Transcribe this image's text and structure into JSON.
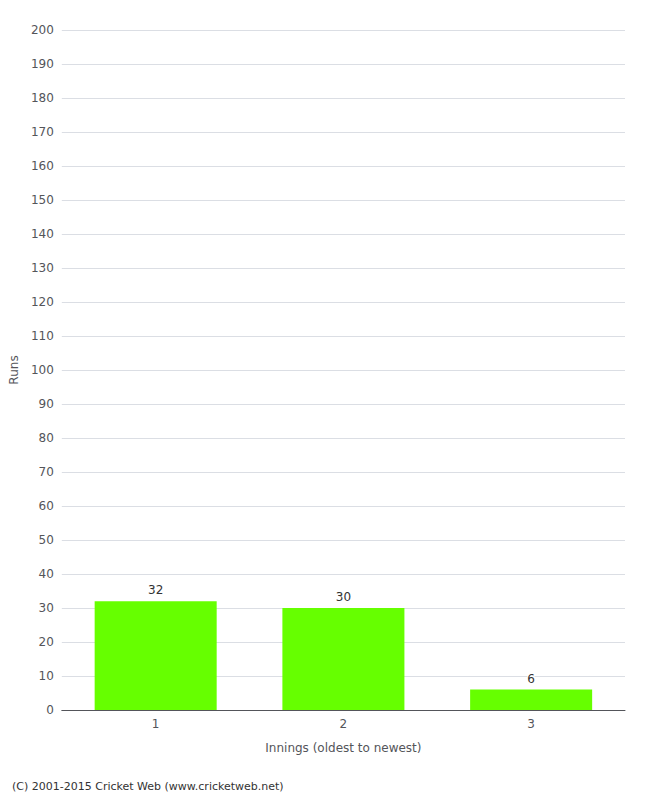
{
  "chart_data": {
    "type": "bar",
    "categories": [
      "1",
      "2",
      "3"
    ],
    "values": [
      32,
      30,
      6
    ],
    "color": "#66ff00",
    "ylabel": "Runs",
    "xlabel": "Innings (oldest to newest)",
    "ylim": [
      0,
      200
    ],
    "yticks": [
      0,
      10,
      20,
      30,
      40,
      50,
      60,
      70,
      80,
      90,
      100,
      110,
      120,
      130,
      140,
      150,
      160,
      170,
      180,
      190,
      200
    ],
    "grid": true,
    "data_labels": true,
    "annotations": [
      "(C) 2001-2015 Cricket Web (www.cricketweb.net)"
    ]
  }
}
